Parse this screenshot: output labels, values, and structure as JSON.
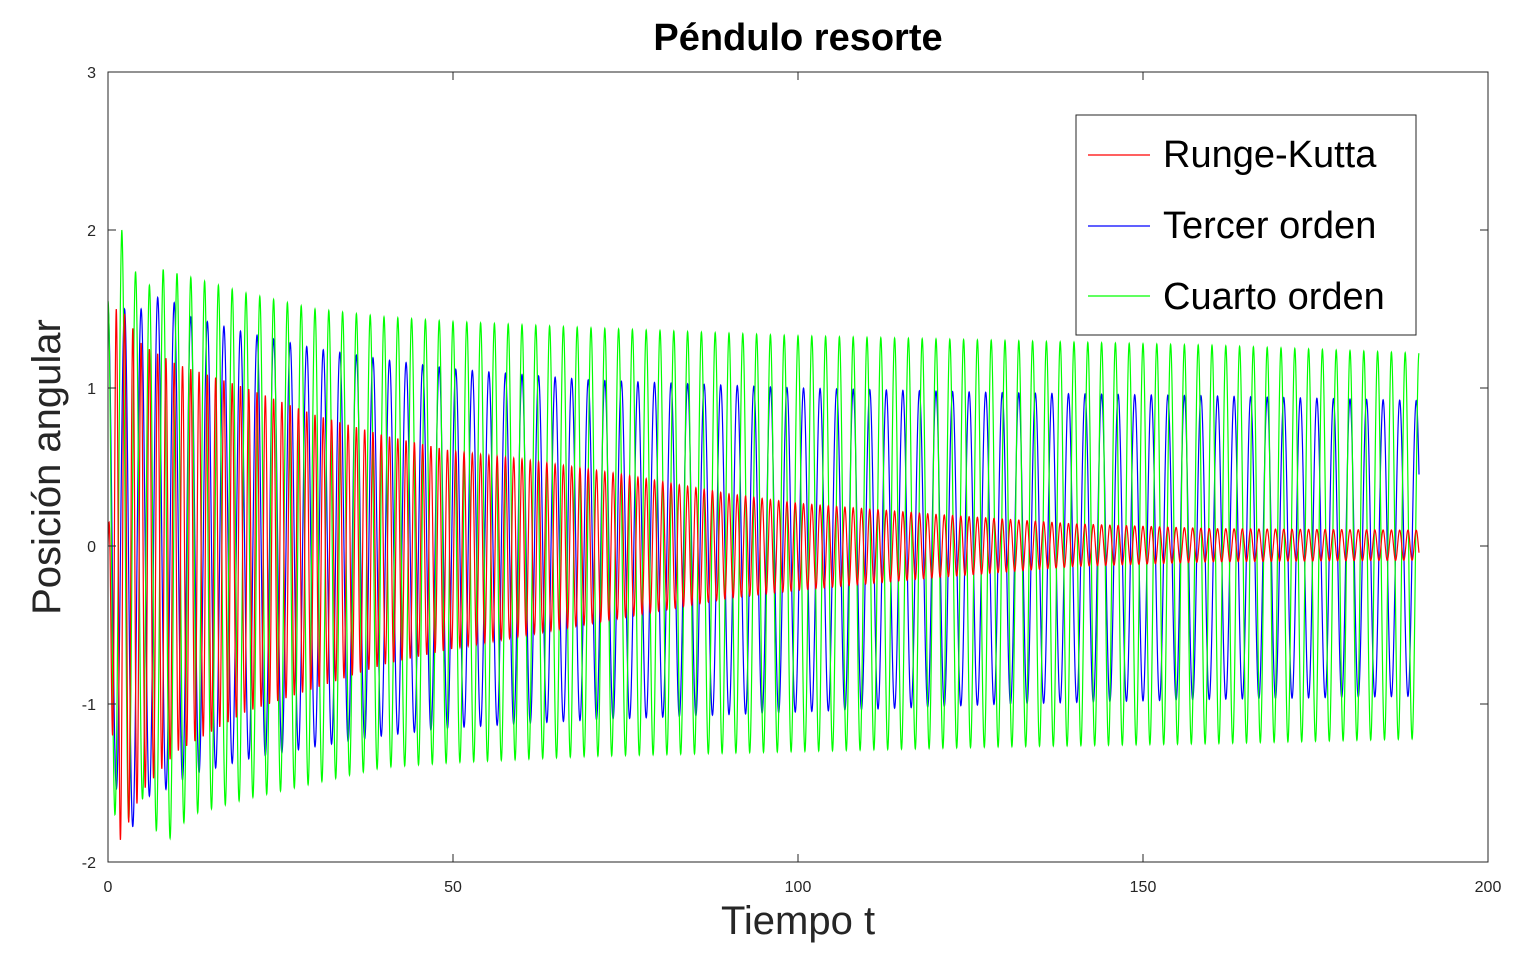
{
  "chart_data": {
    "type": "line",
    "title": "Péndulo resorte",
    "xlabel": "Tiempo t",
    "ylabel": "Posición angular",
    "xlim": [
      0,
      200
    ],
    "ylim": [
      -2,
      3
    ],
    "x_ticks": [
      0,
      50,
      100,
      150,
      200
    ],
    "y_ticks": [
      -2,
      -1,
      0,
      1,
      2,
      3
    ],
    "grid": false,
    "legend_position": "top-right",
    "x_range_data": [
      0,
      190
    ],
    "series": [
      {
        "name": "Runge-Kutta",
        "color": "#ff0000",
        "period": 1.2,
        "envelope_t": [
          0,
          1,
          2,
          5,
          10,
          20,
          30,
          40,
          50,
          60,
          75,
          90,
          100,
          120,
          140,
          160,
          190
        ],
        "envelope_upper": [
          0,
          1.5,
          1.5,
          1.27,
          1.15,
          1.0,
          0.83,
          0.7,
          0.6,
          0.55,
          0.45,
          0.33,
          0.27,
          0.2,
          0.14,
          0.11,
          0.1
        ],
        "envelope_lower": [
          0,
          -1.9,
          -1.85,
          -1.55,
          -1.3,
          -1.05,
          -0.9,
          -0.75,
          -0.65,
          -0.57,
          -0.45,
          -0.33,
          -0.28,
          -0.2,
          -0.13,
          -0.1,
          -0.09
        ]
      },
      {
        "name": "Tercer orden",
        "color": "#0000ff",
        "period": 2.4,
        "envelope_t": [
          0,
          1,
          3,
          5,
          8,
          12,
          20,
          30,
          40,
          50,
          70,
          100,
          130,
          160,
          190
        ],
        "envelope_upper": [
          1.5,
          1.5,
          1.5,
          1.5,
          1.6,
          1.45,
          1.35,
          1.25,
          1.18,
          1.12,
          1.05,
          1.0,
          0.97,
          0.95,
          0.92
        ],
        "envelope_lower": [
          -1.5,
          -1.5,
          -1.85,
          -1.6,
          -1.55,
          -1.45,
          -1.35,
          -1.27,
          -1.2,
          -1.15,
          -1.1,
          -1.05,
          -1.0,
          -0.97,
          -0.95
        ]
      },
      {
        "name": "Cuarto orden",
        "color": "#00ff00",
        "period": 2.0,
        "envelope_t": [
          0,
          1,
          2,
          5,
          8,
          12,
          20,
          30,
          40,
          50,
          70,
          100,
          130,
          160,
          190
        ],
        "envelope_upper": [
          1.55,
          1.55,
          2.0,
          1.6,
          1.75,
          1.7,
          1.6,
          1.5,
          1.45,
          1.42,
          1.38,
          1.33,
          1.3,
          1.27,
          1.22
        ],
        "envelope_lower": [
          -1.5,
          -1.7,
          -1.8,
          -1.6,
          -1.9,
          -1.7,
          -1.6,
          -1.5,
          -1.4,
          -1.37,
          -1.33,
          -1.3,
          -1.27,
          -1.25,
          -1.22
        ]
      }
    ]
  }
}
